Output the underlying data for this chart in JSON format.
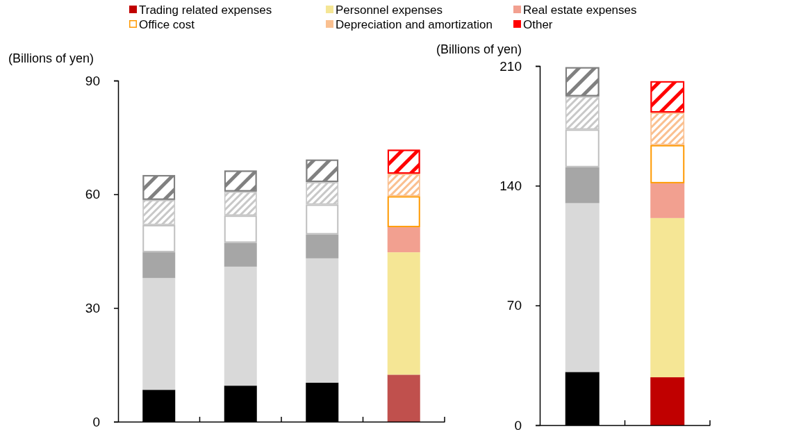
{
  "chart_data": [
    {
      "type": "bar",
      "stacked": true,
      "ylabel": "(Billions of yen)",
      "categories": [
        null,
        null,
        null,
        null
      ],
      "ylim": [
        0,
        90
      ],
      "yticks": [
        0,
        30,
        60,
        90
      ],
      "series": [
        {
          "colors": [
            "#000000",
            "#000000",
            "#000000",
            "#c0504d"
          ],
          "values": [
            8.4,
            9.5,
            10.3,
            12.4
          ]
        },
        {
          "colors": [
            "#d9d9d9",
            "#d9d9d9",
            "#d9d9d9",
            "#f5e695"
          ],
          "values": [
            29.5,
            31.4,
            32.8,
            32.3
          ]
        },
        {
          "colors": [
            "#a6a6a6",
            "#a6a6a6",
            "#a6a6a6",
            "#f2a090"
          ],
          "values": [
            6.8,
            6.3,
            6.3,
            6.6
          ]
        },
        {
          "colors": [
            "#bfbfbf",
            "#bfbfbf",
            "#bfbfbf",
            "#ff9900"
          ],
          "values": [
            7.2,
            7.2,
            7.9,
            8.2
          ]
        },
        {
          "colors": [
            "#c8c8c8",
            "#c8c8c8",
            "#c8c8c8",
            "#fac090"
          ],
          "values": [
            6.6,
            6.3,
            5.9,
            5.9
          ]
        },
        {
          "colors": [
            "#808080",
            "#808080",
            "#808080",
            "#ff0000"
          ],
          "values": [
            6.6,
            5.6,
            6.0,
            6.4
          ]
        }
      ]
    },
    {
      "type": "bar",
      "stacked": true,
      "ylabel": "(Billions of yen)",
      "categories": [
        null,
        null
      ],
      "ylim": [
        0,
        210
      ],
      "yticks": [
        0,
        70,
        140,
        210
      ],
      "legend": "top",
      "series": [
        {
          "name": "Trading related expenses",
          "color": "#c00000",
          "colors": [
            "#000000",
            "#c00000"
          ],
          "values": [
            31.1,
            28.0
          ]
        },
        {
          "name": "Personnel expenses",
          "color": "#f5e695",
          "colors": [
            "#d9d9d9",
            "#f5e695"
          ],
          "values": [
            98.7,
            93.1
          ]
        },
        {
          "name": "Real estate expenses",
          "color": "#f2a090",
          "colors": [
            "#a6a6a6",
            "#f2a090"
          ],
          "values": [
            21.0,
            20.3
          ]
        },
        {
          "name": "Office cost",
          "color": "#ff9900",
          "colors": [
            "#bfbfbf",
            "#ff9900"
          ],
          "values": [
            22.1,
            22.4
          ]
        },
        {
          "name": "Depreciation and amortization",
          "color": "#fac090",
          "colors": [
            "#c8c8c8",
            "#fac090"
          ],
          "values": [
            19.3,
            18.9
          ]
        },
        {
          "name": "Other",
          "color": "#ff0000",
          "colors": [
            "#808080",
            "#ff0000"
          ],
          "values": [
            17.2,
            18.5
          ]
        }
      ]
    }
  ]
}
